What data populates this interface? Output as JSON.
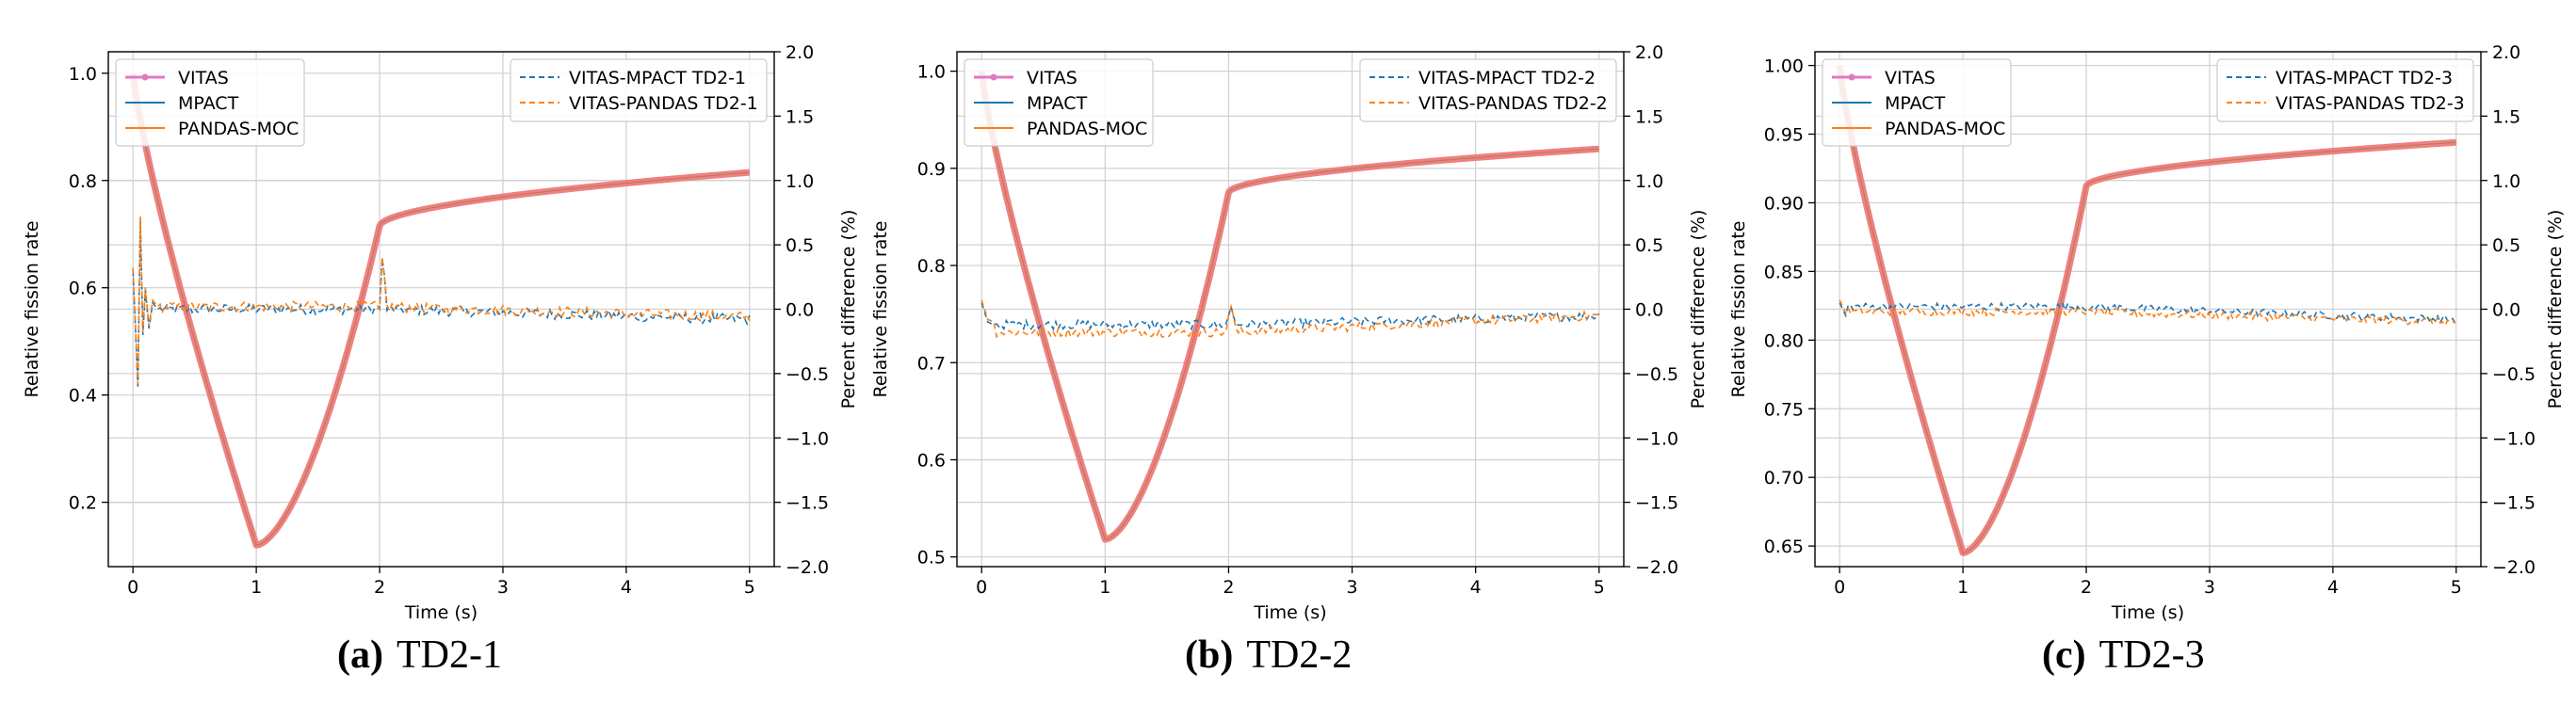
{
  "colors": {
    "vitas": "#e377c2",
    "vitas_overlay": "#f08080",
    "mpact": "#1f77b4",
    "pandas": "#ff7f0e",
    "grid": "#d0d0d0",
    "axis": "#000000"
  },
  "chart_data": [
    {
      "type": "line",
      "panel_label": "(a)",
      "caption": "TD2-1",
      "xlabel": "Time (s)",
      "ylabel": "Relative fission rate",
      "y2label": "Percent difference (%)",
      "xlim": [
        -0.2,
        5.2
      ],
      "ylim": [
        0.08,
        1.04
      ],
      "y2lim": [
        -2.0,
        2.0
      ],
      "xticks": [
        0,
        1,
        2,
        3,
        4,
        5
      ],
      "xtick_labels": [
        "0",
        "1",
        "2",
        "3",
        "4",
        "5"
      ],
      "yticks": [
        0.2,
        0.4,
        0.6,
        0.8,
        1.0
      ],
      "ytick_labels": [
        "0.2",
        "0.4",
        "0.6",
        "0.8",
        "1.0"
      ],
      "y2ticks": [
        -2.0,
        -1.5,
        -1.0,
        -0.5,
        0.0,
        0.5,
        1.0,
        1.5,
        2.0
      ],
      "y2tick_labels": [
        "−2.0",
        "−1.5",
        "−1.0",
        "−0.5",
        "0.0",
        "0.5",
        "1.0",
        "1.5",
        "2.0"
      ],
      "legend_left": [
        "VITAS",
        "MPACT",
        "PANDAS-MOC"
      ],
      "legend_right": [
        "VITAS-MPACT TD2-1",
        "VITAS-PANDAS TD2-1"
      ],
      "curve": {
        "start": 1.0,
        "min": 0.12,
        "jump": 0.715,
        "end": 0.815
      },
      "diff": {
        "early": [
          [
            0.0,
            0.3
          ],
          [
            0.04,
            -0.6
          ],
          [
            0.06,
            0.7
          ],
          [
            0.08,
            -0.2
          ],
          [
            0.1,
            0.15
          ],
          [
            0.13,
            -0.15
          ],
          [
            0.16,
            0.05
          ],
          [
            0.2,
            0.0
          ]
        ],
        "base_a": 0.0,
        "base_b": 0.02,
        "end_a": -0.08,
        "end_b": -0.06,
        "spike": [
          [
            2.0,
            0.0
          ],
          [
            2.01,
            0.4
          ],
          [
            2.02,
            -0.4
          ],
          [
            2.03,
            0.25
          ],
          [
            2.04,
            -0.2
          ],
          [
            2.05,
            0.1
          ]
        ],
        "noise": 0.04
      }
    },
    {
      "type": "line",
      "panel_label": "(b)",
      "caption": "TD2-2",
      "xlabel": "Time (s)",
      "ylabel": "Relative fission rate",
      "y2label": "Percent difference (%)",
      "xlim": [
        -0.2,
        5.2
      ],
      "ylim": [
        0.49,
        1.02
      ],
      "y2lim": [
        -2.0,
        2.0
      ],
      "xticks": [
        0,
        1,
        2,
        3,
        4,
        5
      ],
      "xtick_labels": [
        "0",
        "1",
        "2",
        "3",
        "4",
        "5"
      ],
      "yticks": [
        0.5,
        0.6,
        0.7,
        0.8,
        0.9,
        1.0
      ],
      "ytick_labels": [
        "0.5",
        "0.6",
        "0.7",
        "0.8",
        "0.9",
        "1.0"
      ],
      "y2ticks": [
        -2.0,
        -1.5,
        -1.0,
        -0.5,
        0.0,
        0.5,
        1.0,
        1.5,
        2.0
      ],
      "y2tick_labels": [
        "−2.0",
        "−1.5",
        "−1.0",
        "−0.5",
        "0.0",
        "0.5",
        "1.0",
        "1.5",
        "2.0"
      ],
      "legend_left": [
        "VITAS",
        "MPACT",
        "PANDAS-MOC"
      ],
      "legend_right": [
        "VITAS-MPACT TD2-2",
        "VITAS-PANDAS TD2-2"
      ],
      "curve": {
        "start": 1.0,
        "min": 0.518,
        "jump": 0.875,
        "end": 0.92
      },
      "diff": {
        "early": [
          [
            0.0,
            0.05
          ],
          [
            0.05,
            -0.1
          ],
          [
            0.1,
            -0.12
          ]
        ],
        "base_a": -0.12,
        "base_b": -0.18,
        "end_a": -0.05,
        "end_b": -0.05,
        "spike": [
          [
            2.0,
            -0.05
          ],
          [
            2.02,
            0.02
          ],
          [
            2.04,
            -0.06
          ]
        ],
        "noise": 0.035
      }
    },
    {
      "type": "line",
      "panel_label": "(c)",
      "caption": "TD2-3",
      "xlabel": "Time (s)",
      "ylabel": "Relative fission rate",
      "y2label": "Percent difference (%)",
      "xlim": [
        -0.2,
        5.2
      ],
      "ylim": [
        0.635,
        1.01
      ],
      "y2lim": [
        -2.0,
        2.0
      ],
      "xticks": [
        0,
        1,
        2,
        3,
        4,
        5
      ],
      "xtick_labels": [
        "0",
        "1",
        "2",
        "3",
        "4",
        "5"
      ],
      "yticks": [
        0.65,
        0.7,
        0.75,
        0.8,
        0.85,
        0.9,
        0.95,
        1.0
      ],
      "ytick_labels": [
        "0.65",
        "0.70",
        "0.75",
        "0.80",
        "0.85",
        "0.90",
        "0.95",
        "1.00"
      ],
      "y2ticks": [
        -2.0,
        -1.5,
        -1.0,
        -0.5,
        0.0,
        0.5,
        1.0,
        1.5,
        2.0
      ],
      "y2tick_labels": [
        "−2.0",
        "−1.5",
        "−1.0",
        "−0.5",
        "0.0",
        "0.5",
        "1.0",
        "1.5",
        "2.0"
      ],
      "legend_left": [
        "VITAS",
        "MPACT",
        "PANDAS-MOC"
      ],
      "legend_right": [
        "VITAS-MPACT TD2-3",
        "VITAS-PANDAS TD2-3"
      ],
      "curve": {
        "start": 1.0,
        "min": 0.645,
        "jump": 0.912,
        "end": 0.944
      },
      "diff": {
        "early": [
          [
            0.0,
            0.05
          ],
          [
            0.05,
            -0.05
          ]
        ],
        "base_a": 0.02,
        "base_b": -0.02,
        "end_a": -0.08,
        "end_b": -0.1,
        "spike": [
          [
            2.0,
            -0.02
          ],
          [
            2.02,
            0.0
          ]
        ],
        "noise": 0.03
      }
    }
  ]
}
